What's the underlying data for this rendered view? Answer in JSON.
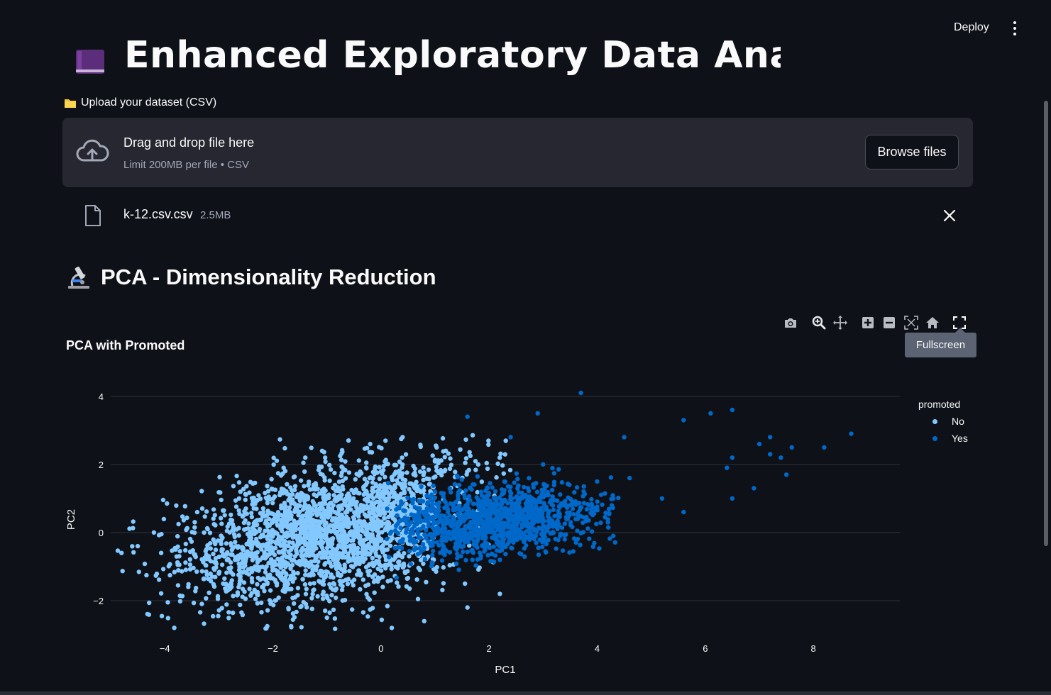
{
  "header": {
    "deploy_label": "Deploy",
    "menu_icon": "vertical-ellipsis-icon"
  },
  "title": {
    "icon": "book-icon",
    "text": "Enhanced Exploratory Data Analysis"
  },
  "uploader": {
    "label_icon": "folder-icon",
    "label": "Upload your dataset (CSV)",
    "dropzone_icon": "cloud-upload-icon",
    "dropzone_text": "Drag and drop file here",
    "dropzone_limit": "Limit 200MB per file • CSV",
    "browse_label": "Browse files"
  },
  "uploaded_file": {
    "icon": "file-icon",
    "name": "k-12.csv.csv",
    "size": "2.5MB",
    "remove_icon": "close-icon"
  },
  "section": {
    "icon": "microscope-icon",
    "title": "PCA - Dimensionality Reduction"
  },
  "modebar": {
    "buttons": [
      "camera-icon",
      "zoom-icon",
      "pan-icon",
      "zoom-in-icon",
      "zoom-out-icon",
      "autoscale-icon",
      "reset-axes-icon",
      "fullscreen-icon"
    ],
    "tooltip": "Fullscreen"
  },
  "chart_data": {
    "type": "scatter",
    "title": "PCA with Promoted",
    "xlabel": "PC1",
    "ylabel": "PC2",
    "xlim": [
      -5,
      9.6
    ],
    "ylim": [
      -3.0,
      4.6
    ],
    "xticks": [
      -4,
      -2,
      0,
      2,
      4,
      6,
      8
    ],
    "yticks": [
      -2,
      0,
      2,
      4
    ],
    "grid": true,
    "legend_title": "promoted",
    "legend_position": "top-right",
    "series": [
      {
        "name": "No",
        "color": "#83c9ff",
        "description_points": [
          [
            -4.8,
            -0.6
          ],
          [
            -4.5,
            -0.4
          ],
          [
            -4.2,
            0.0
          ],
          [
            -3.8,
            -0.5
          ],
          [
            -3.4,
            0.6
          ],
          [
            -3.0,
            -1.2
          ],
          [
            -2.6,
            1.2
          ],
          [
            -2.2,
            -1.6
          ],
          [
            -1.8,
            1.9
          ],
          [
            -1.4,
            2.2
          ],
          [
            -1.0,
            -2.5
          ],
          [
            -0.6,
            2.7
          ],
          [
            -0.2,
            2.6
          ],
          [
            0.2,
            -2.8
          ],
          [
            0.4,
            2.8
          ],
          [
            0.8,
            -2.6
          ],
          [
            1.2,
            2.4
          ],
          [
            1.6,
            -2.2
          ],
          [
            1.8,
            2.0
          ],
          [
            2.2,
            -1.8
          ],
          [
            -1.5,
            0.3
          ],
          [
            -0.5,
            -0.4
          ],
          [
            0.3,
            0.5
          ],
          [
            -2.5,
            0.1
          ]
        ]
      },
      {
        "name": "Yes",
        "color": "#0068c9",
        "description_points": [
          [
            0.3,
            0.5
          ],
          [
            0.6,
            -0.2
          ],
          [
            1.0,
            1.2
          ],
          [
            1.4,
            -0.5
          ],
          [
            1.8,
            0.8
          ],
          [
            2.2,
            -0.8
          ],
          [
            2.6,
            1.0
          ],
          [
            3.0,
            0.2
          ],
          [
            3.4,
            -0.2
          ],
          [
            3.8,
            0.4
          ],
          [
            4.2,
            0.3
          ],
          [
            1.6,
            3.4
          ],
          [
            2.9,
            3.5
          ],
          [
            3.7,
            4.1
          ],
          [
            4.5,
            2.8
          ],
          [
            4.6,
            1.6
          ],
          [
            5.2,
            1.0
          ],
          [
            5.6,
            0.6
          ],
          [
            5.6,
            3.3
          ],
          [
            6.1,
            3.5
          ],
          [
            6.5,
            3.6
          ],
          [
            6.5,
            2.2
          ],
          [
            6.4,
            1.9
          ],
          [
            6.5,
            1.0
          ],
          [
            6.9,
            1.3
          ],
          [
            7.0,
            2.6
          ],
          [
            7.2,
            2.8
          ],
          [
            7.2,
            2.3
          ],
          [
            7.4,
            2.2
          ],
          [
            7.5,
            1.7
          ],
          [
            7.6,
            2.5
          ],
          [
            8.2,
            2.5
          ],
          [
            8.7,
            2.9
          ],
          [
            3.0,
            2.0
          ],
          [
            2.4,
            2.8
          ],
          [
            4.0,
            1.5
          ]
        ]
      }
    ]
  }
}
